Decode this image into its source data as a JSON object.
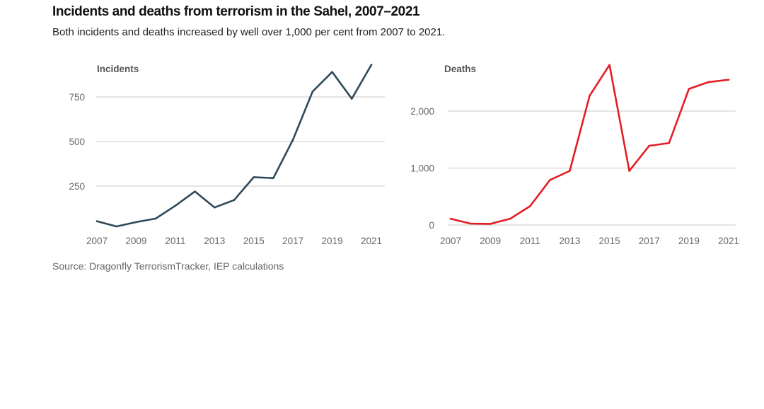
{
  "header": {
    "title": "Incidents and deaths from terrorism in the Sahel, 2007–2021",
    "subtitle": "Both incidents and deaths increased by well over 1,000 per cent from 2007 to 2021."
  },
  "footer": {
    "source": "Source: Dragonfly TerrorismTracker, IEP calculations"
  },
  "chart_data": [
    {
      "type": "line",
      "title": "Incidents",
      "xlabel": "",
      "ylabel": "",
      "x": [
        2007,
        2008,
        2009,
        2010,
        2011,
        2012,
        2013,
        2014,
        2015,
        2016,
        2017,
        2018,
        2019,
        2020,
        2021
      ],
      "x_ticks": [
        "2007",
        "2009",
        "2011",
        "2013",
        "2015",
        "2017",
        "2019",
        "2021"
      ],
      "y_ticks": [
        {
          "value": 250,
          "label": "250"
        },
        {
          "value": 500,
          "label": "500"
        },
        {
          "value": 750,
          "label": "750"
        }
      ],
      "ylim": [
        0,
        960
      ],
      "grid": true,
      "series": [
        {
          "color": "#2e4a5a",
          "values": [
            53,
            24,
            48,
            68,
            140,
            220,
            130,
            172,
            300,
            295,
            510,
            780,
            890,
            740,
            930
          ]
        }
      ]
    },
    {
      "type": "line",
      "title": "Deaths",
      "xlabel": "",
      "ylabel": "",
      "x": [
        2007,
        2008,
        2009,
        2010,
        2011,
        2012,
        2013,
        2014,
        2015,
        2016,
        2017,
        2018,
        2019,
        2020,
        2021
      ],
      "x_ticks": [
        "2007",
        "2009",
        "2011",
        "2013",
        "2015",
        "2017",
        "2019",
        "2021"
      ],
      "y_ticks": [
        {
          "value": 0,
          "label": "0"
        },
        {
          "value": 1000,
          "label": "1,000"
        },
        {
          "value": 2000,
          "label": "2,000"
        }
      ],
      "ylim": [
        0,
        2850
      ],
      "grid": true,
      "series": [
        {
          "color": "#e31e24",
          "values": [
            110,
            25,
            20,
            110,
            330,
            790,
            950,
            2270,
            2810,
            950,
            1390,
            1440,
            2390,
            2510,
            2550
          ]
        }
      ]
    }
  ]
}
